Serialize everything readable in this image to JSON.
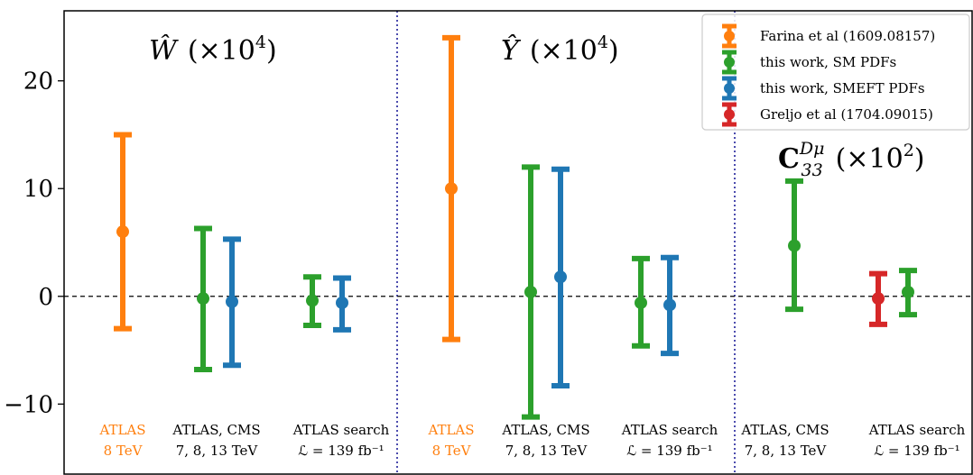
{
  "chart_data": {
    "type": "errorbar",
    "ylim": [
      -16.5,
      26.5
    ],
    "yticks": [
      {
        "value": -10,
        "label": "−10"
      },
      {
        "value": 0,
        "label": "0"
      },
      {
        "value": 10,
        "label": "10"
      },
      {
        "value": 20,
        "label": "20"
      }
    ],
    "zero_line": "dashed",
    "panels": [
      {
        "id": "W",
        "symbol": "Ŵ",
        "scale": "(×10",
        "exp": "4",
        "close": ")"
      },
      {
        "id": "Y",
        "symbol": "Ŷ",
        "scale": "(×10",
        "exp": "4",
        "close": ")"
      },
      {
        "id": "C",
        "symbol": "C",
        "sub": "33",
        "sup": "Dμ",
        "scale": "(×10",
        "exp": "2",
        "close": ")"
      }
    ],
    "series": [
      {
        "name": "Farina et al (1609.08157)",
        "color": "#ff7f0e"
      },
      {
        "name": "this work,  SM PDFs",
        "color": "#2ca02c"
      },
      {
        "name": "this work,  SMEFT PDFs",
        "color": "#1f77b4"
      },
      {
        "name": "Greljo et al (1704.09015)",
        "color": "#d62728"
      }
    ],
    "points": [
      {
        "panel": "W",
        "series": 0,
        "center": 6.0,
        "low": -3.0,
        "high": 15.0
      },
      {
        "panel": "W",
        "series": 1,
        "center": -0.2,
        "low": -6.8,
        "high": 6.3
      },
      {
        "panel": "W",
        "series": 2,
        "center": -0.5,
        "low": -6.4,
        "high": 5.3
      },
      {
        "panel": "W",
        "series": 1,
        "center": -0.4,
        "low": -2.7,
        "high": 1.8
      },
      {
        "panel": "W",
        "series": 2,
        "center": -0.6,
        "low": -3.1,
        "high": 1.7
      },
      {
        "panel": "Y",
        "series": 0,
        "center": 10.0,
        "low": -4.0,
        "high": 24.0
      },
      {
        "panel": "Y",
        "series": 1,
        "center": 0.4,
        "low": -11.2,
        "high": 12.0
      },
      {
        "panel": "Y",
        "series": 2,
        "center": 1.8,
        "low": -8.3,
        "high": 11.8
      },
      {
        "panel": "Y",
        "series": 1,
        "center": -0.6,
        "low": -4.6,
        "high": 3.5
      },
      {
        "panel": "Y",
        "series": 2,
        "center": -0.8,
        "low": -5.3,
        "high": 3.6
      },
      {
        "panel": "C",
        "series": 1,
        "center": 4.7,
        "low": -1.2,
        "high": 10.7
      },
      {
        "panel": "C",
        "series": 3,
        "center": -0.2,
        "low": -2.6,
        "high": 2.1
      },
      {
        "panel": "C",
        "series": 1,
        "center": 0.4,
        "low": -1.7,
        "high": 2.4
      }
    ],
    "group_labels": [
      {
        "line1": "ATLAS",
        "line2": "8 TeV",
        "color": "#ff7f0e"
      },
      {
        "line1": "ATLAS, CMS",
        "line2": "7, 8, 13 TeV",
        "color": "#000000"
      },
      {
        "line1": "ATLAS search",
        "line2": "ℒ = 139 fb⁻¹",
        "color": "#000000"
      },
      {
        "line1": "ATLAS",
        "line2": "8 TeV",
        "color": "#ff7f0e"
      },
      {
        "line1": "ATLAS, CMS",
        "line2": "7, 8, 13 TeV",
        "color": "#000000"
      },
      {
        "line1": "ATLAS search",
        "line2": "ℒ = 139 fb⁻¹",
        "color": "#000000"
      },
      {
        "line1": "ATLAS, CMS",
        "line2": "7, 8, 13 TeV",
        "color": "#000000"
      },
      {
        "line1": "ATLAS search",
        "line2": "ℒ = 139 fb⁻¹",
        "color": "#000000"
      }
    ],
    "legend_position": "top-right"
  }
}
